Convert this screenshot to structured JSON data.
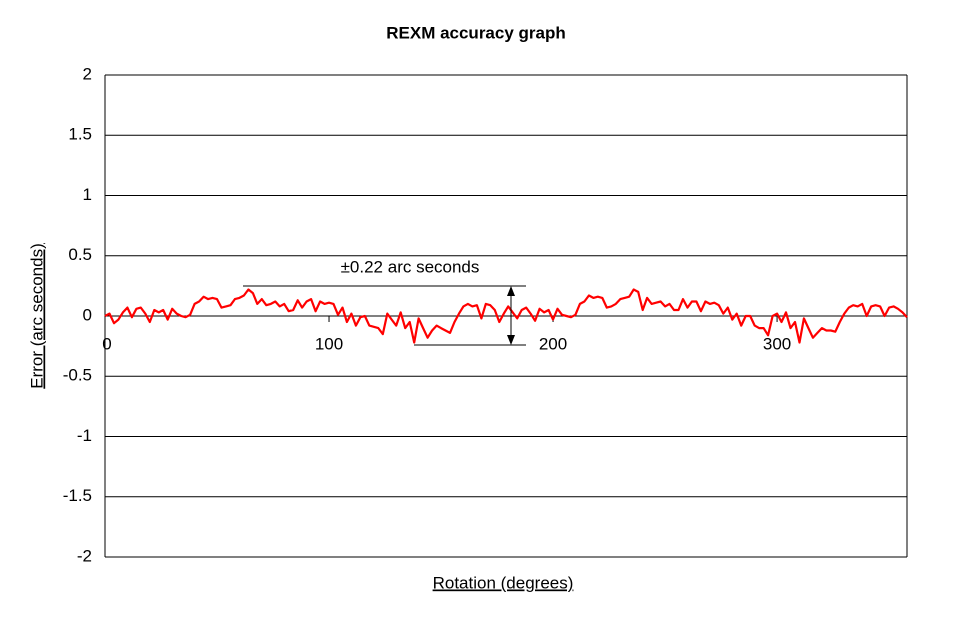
{
  "chart_data": {
    "type": "line",
    "title": "REXM accuracy graph",
    "x_label": "Rotation (degrees)",
    "y_label": "Error (arc seconds)",
    "annotation": "±0.22 arc seconds",
    "color": "#ff0000",
    "grid": true,
    "xlim": [
      0,
      358
    ],
    "xticks": [
      0,
      100,
      200,
      300
    ],
    "ylim": [
      -2,
      2
    ],
    "yticks": [
      2,
      1.5,
      1,
      0.5,
      0,
      -0.5,
      -1,
      -1.5,
      -2
    ],
    "x": [
      0,
      2,
      4,
      6,
      8,
      10,
      12,
      14,
      16,
      18,
      20,
      22,
      24,
      26,
      28,
      30,
      32,
      34,
      36,
      38,
      40,
      42,
      44,
      46,
      48,
      50,
      52,
      54,
      56,
      58,
      60,
      62,
      64,
      66,
      68,
      70,
      72,
      74,
      76,
      78,
      80,
      82,
      84,
      86,
      88,
      90,
      92,
      94,
      96,
      98,
      100,
      102,
      104,
      106,
      108,
      110,
      112,
      114,
      116,
      118,
      120,
      122,
      124,
      126,
      128,
      130,
      132,
      134,
      136,
      138,
      140,
      142,
      144,
      146,
      148,
      150,
      152,
      154,
      156,
      158,
      160,
      162,
      164,
      166,
      168,
      170,
      172,
      174,
      176,
      178,
      180,
      182,
      184,
      186,
      188,
      190,
      192,
      194,
      196,
      198,
      200,
      202,
      204,
      206,
      208,
      210,
      212,
      214,
      216,
      218,
      220,
      222,
      224,
      226,
      228,
      230,
      232,
      234,
      236,
      238,
      240,
      242,
      244,
      246,
      248,
      250,
      252,
      254,
      256,
      258,
      260,
      262,
      264,
      266,
      268,
      270,
      272,
      274,
      276,
      278,
      280,
      282,
      284,
      286,
      288,
      290,
      292,
      294,
      296,
      298,
      300,
      302,
      304,
      306,
      308,
      310,
      312,
      314,
      316,
      318,
      320,
      322,
      324,
      326,
      328,
      330,
      332,
      334,
      336,
      338,
      340,
      342,
      344,
      346,
      348,
      350,
      352,
      354,
      356,
      358
    ],
    "values": [
      0,
      0.02,
      -0.06,
      -0.03,
      0.03,
      0.07,
      -0.01,
      0.06,
      0.07,
      0.02,
      -0.05,
      0.05,
      0.03,
      0.05,
      -0.03,
      0.06,
      0.02,
      0,
      -0.01,
      0.01,
      0.1,
      0.12,
      0.16,
      0.14,
      0.15,
      0.14,
      0.07,
      0.08,
      0.09,
      0.14,
      0.15,
      0.17,
      0.22,
      0.19,
      0.1,
      0.14,
      0.09,
      0.1,
      0.12,
      0.08,
      0.1,
      0.04,
      0.05,
      0.13,
      0.07,
      0.12,
      0.14,
      0.04,
      0.12,
      0.1,
      0.11,
      0.1,
      0.01,
      0.07,
      -0.05,
      0.02,
      -0.08,
      -0.01,
      0,
      -0.08,
      -0.09,
      -0.1,
      -0.15,
      0.02,
      -0.03,
      -0.08,
      0.03,
      -0.1,
      -0.05,
      -0.22,
      -0.02,
      -0.1,
      -0.18,
      -0.12,
      -0.08,
      -0.1,
      -0.12,
      -0.14,
      -0.05,
      0.02,
      0.08,
      0.1,
      0.08,
      0.09,
      -0.02,
      0.1,
      0.09,
      0.05,
      -0.05,
      0.02,
      0.08,
      0.03,
      -0.02,
      0.05,
      0.07,
      0.02,
      -0.04,
      0.06,
      0.03,
      0.05,
      -0.03,
      0.06,
      0.01,
      0,
      -0.01,
      0.01,
      0.1,
      0.12,
      0.17,
      0.15,
      0.16,
      0.15,
      0.07,
      0.08,
      0.1,
      0.14,
      0.15,
      0.16,
      0.22,
      0.2,
      0.05,
      0.15,
      0.1,
      0.11,
      0.12,
      0.08,
      0.1,
      0.05,
      0.05,
      0.14,
      0.07,
      0.12,
      0.12,
      0.04,
      0.12,
      0.1,
      0.11,
      0.09,
      0.02,
      0.07,
      -0.03,
      0.02,
      -0.08,
      0,
      0,
      -0.08,
      -0.1,
      -0.1,
      -0.16,
      0,
      0.02,
      -0.05,
      0.03,
      -0.1,
      -0.05,
      -0.22,
      -0.02,
      -0.1,
      -0.18,
      -0.14,
      -0.1,
      -0.12,
      -0.12,
      -0.13,
      -0.05,
      0.02,
      0.07,
      0.09,
      0.08,
      0.1,
      0,
      0.08,
      0.09,
      0.08,
      0,
      0.07,
      0.08,
      0.06,
      0.03,
      -0.01
    ]
  }
}
